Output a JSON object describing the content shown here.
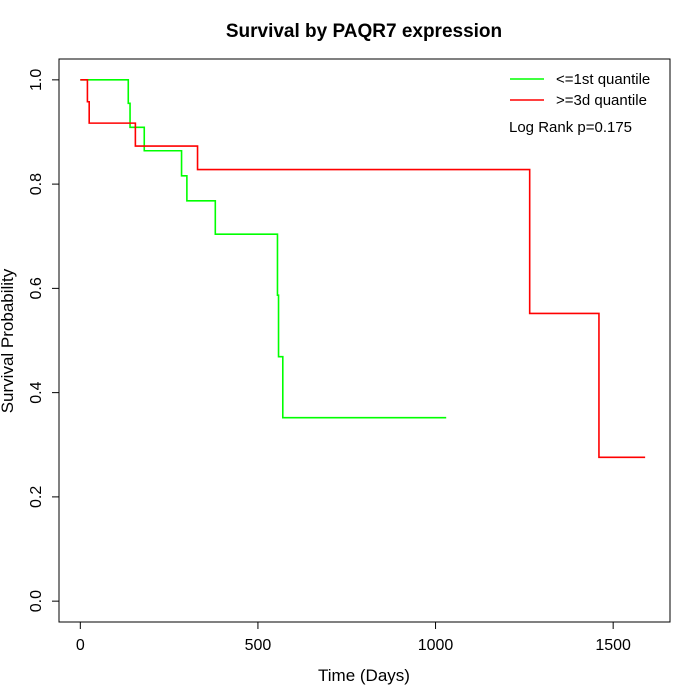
{
  "chart_data": {
    "type": "line",
    "subtype": "kaplan-meier step",
    "title": "Survival by PAQR7 expression",
    "xlabel": "Time (Days)",
    "ylabel": "Survival Probability",
    "xlim": [
      -60,
      1660
    ],
    "ylim": [
      -0.04,
      1.04
    ],
    "xticks": [
      0,
      500,
      1000,
      1500
    ],
    "yticks": [
      0.0,
      0.2,
      0.4,
      0.6,
      0.8,
      1.0
    ],
    "xtick_labels": [
      "0",
      "500",
      "1000",
      "1500"
    ],
    "ytick_labels": [
      "0.0",
      "0.2",
      "0.4",
      "0.6",
      "0.8",
      "1.0"
    ],
    "grid": false,
    "legend_position": "top-right",
    "annotation": "Log Rank p=0.175",
    "series": [
      {
        "name": "<=1st quantile",
        "color": "#00ff00",
        "x": [
          0,
          135,
          140,
          160,
          180,
          285,
          300,
          380,
          555,
          558,
          560,
          570,
          1030
        ],
        "y": [
          1.0,
          0.955,
          0.909,
          0.909,
          0.864,
          0.816,
          0.768,
          0.704,
          0.587,
          0.469,
          0.469,
          0.352,
          0.352
        ]
      },
      {
        "name": ">=3d quantile",
        "color": "#ff0000",
        "x": [
          0,
          20,
          25,
          155,
          330,
          1265,
          1460,
          1590
        ],
        "y": [
          1.0,
          0.958,
          0.917,
          0.873,
          0.828,
          0.552,
          0.276,
          0.276
        ]
      }
    ]
  }
}
